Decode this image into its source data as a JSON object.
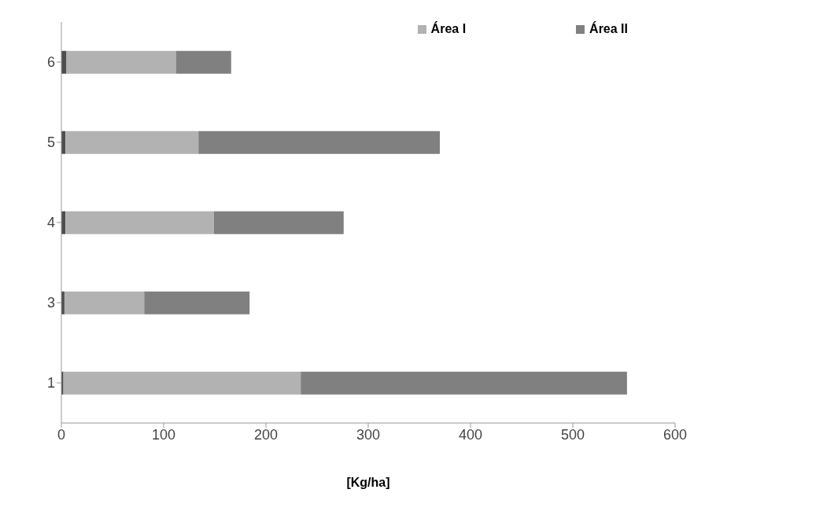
{
  "chart_data": {
    "type": "bar",
    "orientation": "horizontal",
    "stacked": true,
    "xlabel": "[Kg/ha]",
    "categories": [
      "6",
      "5",
      "4",
      "3",
      "1"
    ],
    "series": [
      {
        "color": "#4d4d4d",
        "values": [
          5,
          4,
          4,
          3,
          2
        ]
      },
      {
        "name": "Área I",
        "color": "#b2b2b2",
        "values": [
          107,
          130,
          145,
          78,
          232
        ]
      },
      {
        "name": "Área II",
        "color": "#808080",
        "values": [
          54,
          236,
          127,
          103,
          319
        ]
      }
    ],
    "xlim": [
      0,
      600
    ],
    "xticks": [
      0,
      100,
      200,
      300,
      400,
      500,
      600
    ],
    "grid": false,
    "legend": "top right"
  }
}
